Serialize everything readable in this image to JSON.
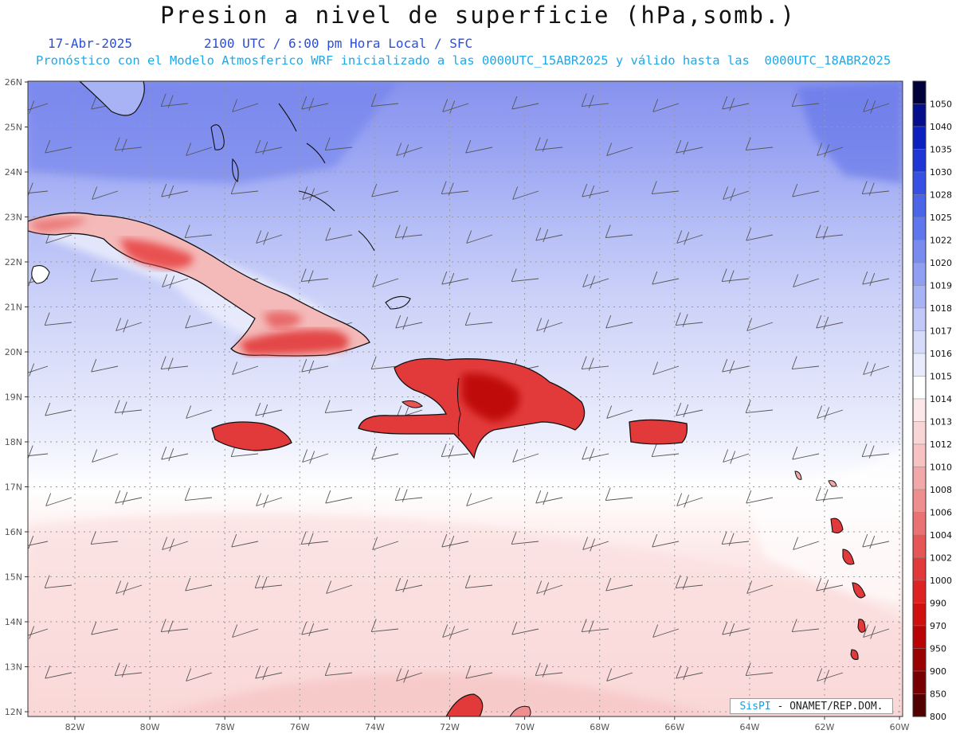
{
  "header": {
    "title": "Presion a nivel de superficie (hPa,somb.)",
    "date": "17-Abr-2025",
    "time": "2100 UTC / 6:00 pm Hora Local / SFC",
    "model_info": "Pronóstico con el Modelo Atmosferico WRF inicializado a las 0000UTC_15ABR2025 y válido hasta las  0000UTC_18ABR2025"
  },
  "map": {
    "lat_labels": [
      "26N",
      "25N",
      "24N",
      "23N",
      "22N",
      "21N",
      "20N",
      "19N",
      "18N",
      "17N",
      "16N",
      "15N",
      "14N",
      "13N",
      "12N"
    ],
    "lon_labels": [
      "82W",
      "80W",
      "78W",
      "76W",
      "74W",
      "72W",
      "70W",
      "68W",
      "66W",
      "64W",
      "62W",
      "60W"
    ],
    "variable": "surface pressure",
    "units": "hPa",
    "overlay": "wind barbs"
  },
  "legend": {
    "levels": [
      {
        "label": "1050",
        "color": "#00003a"
      },
      {
        "label": "1040",
        "color": "#050f8c"
      },
      {
        "label": "1035",
        "color": "#0c1fbf"
      },
      {
        "label": "1030",
        "color": "#1f36d6"
      },
      {
        "label": "1028",
        "color": "#3550e2"
      },
      {
        "label": "1025",
        "color": "#4b65e8"
      },
      {
        "label": "1022",
        "color": "#6076ec"
      },
      {
        "label": "1020",
        "color": "#7a8bf0"
      },
      {
        "label": "1019",
        "color": "#909ff3"
      },
      {
        "label": "1018",
        "color": "#a8b3f5"
      },
      {
        "label": "1017",
        "color": "#c2c9f8"
      },
      {
        "label": "1016",
        "color": "#d6dbfa"
      },
      {
        "label": "1015",
        "color": "#e8ebfc"
      },
      {
        "label": "1014",
        "color": "#ffffff"
      },
      {
        "label": "1013",
        "color": "#fce8e8"
      },
      {
        "label": "1012",
        "color": "#f9d6d6"
      },
      {
        "label": "1010",
        "color": "#f6c2c2"
      },
      {
        "label": "1008",
        "color": "#f2a8a8"
      },
      {
        "label": "1006",
        "color": "#ee8e8e"
      },
      {
        "label": "1004",
        "color": "#ea7272"
      },
      {
        "label": "1002",
        "color": "#e65656"
      },
      {
        "label": "1000",
        "color": "#e23a3a"
      },
      {
        "label": "990",
        "color": "#de2222"
      },
      {
        "label": "970",
        "color": "#d00f0f"
      },
      {
        "label": "950",
        "color": "#b80404"
      },
      {
        "label": "900",
        "color": "#9a0202"
      },
      {
        "label": "850",
        "color": "#780000"
      },
      {
        "label": "800",
        "color": "#520000"
      }
    ]
  },
  "credit": {
    "brand": "SisPI",
    "org": " - ONAMET/REP.DOM."
  }
}
